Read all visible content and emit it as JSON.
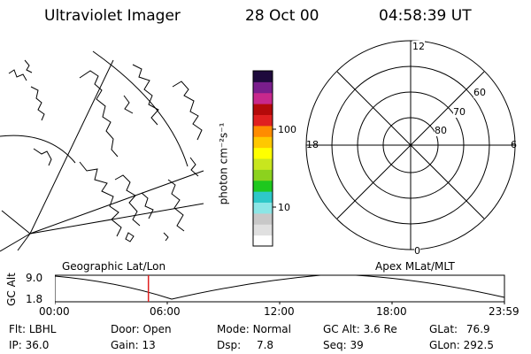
{
  "header": {
    "instrument": "Ultraviolet Imager",
    "date": "28 Oct 00",
    "time": "04:58:39 UT"
  },
  "colorbar": {
    "unit_label": "photon cm⁻²s⁻¹",
    "ticks": [
      "100",
      "10"
    ],
    "colors": [
      "#ffffff",
      "#e0e0e0",
      "#c8c8c8",
      "#8ce6e6",
      "#2ec8c8",
      "#1ec81e",
      "#8cd21e",
      "#c8e61e",
      "#ffff00",
      "#ffc800",
      "#ff8c00",
      "#e02020",
      "#b40a0a",
      "#c8288c",
      "#7a1e8c",
      "#1e0a3c"
    ]
  },
  "map_labels": {
    "geographic": "Geographic Lat/Lon",
    "apex": "Apex MLat/MLT"
  },
  "polar_plot": {
    "mlt_labels": {
      "top": "12",
      "left": "18",
      "right": "6",
      "bottom": "0"
    },
    "lat_labels": [
      "60",
      "70",
      "80"
    ]
  },
  "altitude_plot": {
    "axis_label": "GC Alt",
    "y_ticks": [
      "9.0",
      "1.8"
    ],
    "x_ticks": [
      "00:00",
      "06:00",
      "12:00",
      "18:00",
      "23:59"
    ],
    "current_time_fraction": 0.208
  },
  "status": {
    "filter": {
      "label": "Flt:",
      "value": "LBHL"
    },
    "ip": {
      "label": "IP:",
      "value": "36.0"
    },
    "door": {
      "label": "Door:",
      "value": "Open"
    },
    "gain": {
      "label": "Gain:",
      "value": "13"
    },
    "mode": {
      "label": "Mode:",
      "value": "Normal"
    },
    "dsp": {
      "label": "Dsp:",
      "value": "7.8"
    },
    "gc_alt": {
      "label": "GC Alt:",
      "value": "3.6 Re"
    },
    "seq": {
      "label": "Seq:",
      "value": "39"
    },
    "glat": {
      "label": "GLat:",
      "value": "76.9"
    },
    "glon": {
      "label": "GLon:",
      "value": "292.5"
    }
  }
}
